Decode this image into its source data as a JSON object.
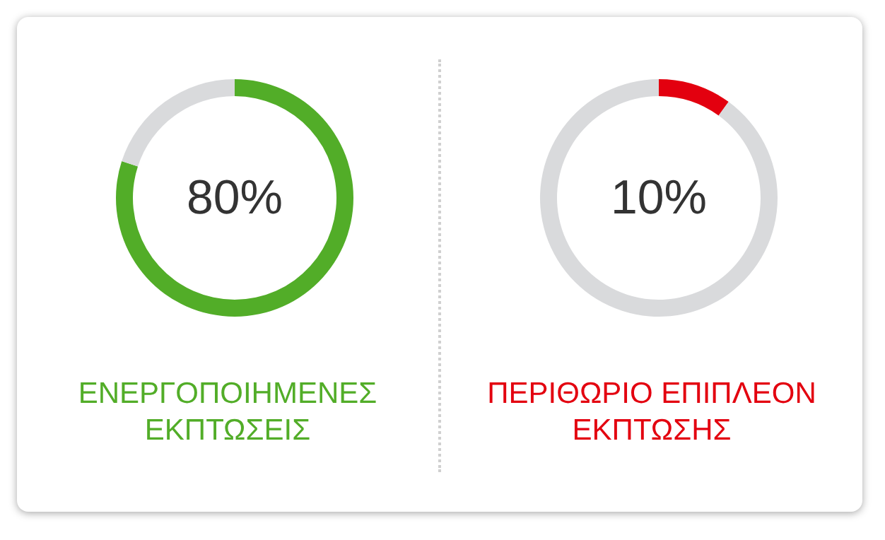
{
  "chart_data": [
    {
      "type": "donut",
      "title": "ΕΝΕΡΓΟΠΟΙΗΜΕΝΕΣ ΕΚΠΤΩΣΕΙΣ",
      "categories": [
        null,
        null
      ],
      "values": [
        80,
        20
      ],
      "colors": [
        "#52ad28",
        "#d9dadc"
      ],
      "value_labels": [
        "80%",
        null
      ]
    },
    {
      "type": "donut",
      "title": "ΠΕΡΙΘΩΡΙΟ ΕΠΙΠΛΕΟΝ ΕΚΠΤΩΣΗΣ",
      "categories": [
        null,
        null
      ],
      "values": [
        10,
        90
      ],
      "colors": [
        "#e3000f",
        "#d9dadc"
      ],
      "value_labels": [
        "10%",
        null
      ]
    }
  ]
}
